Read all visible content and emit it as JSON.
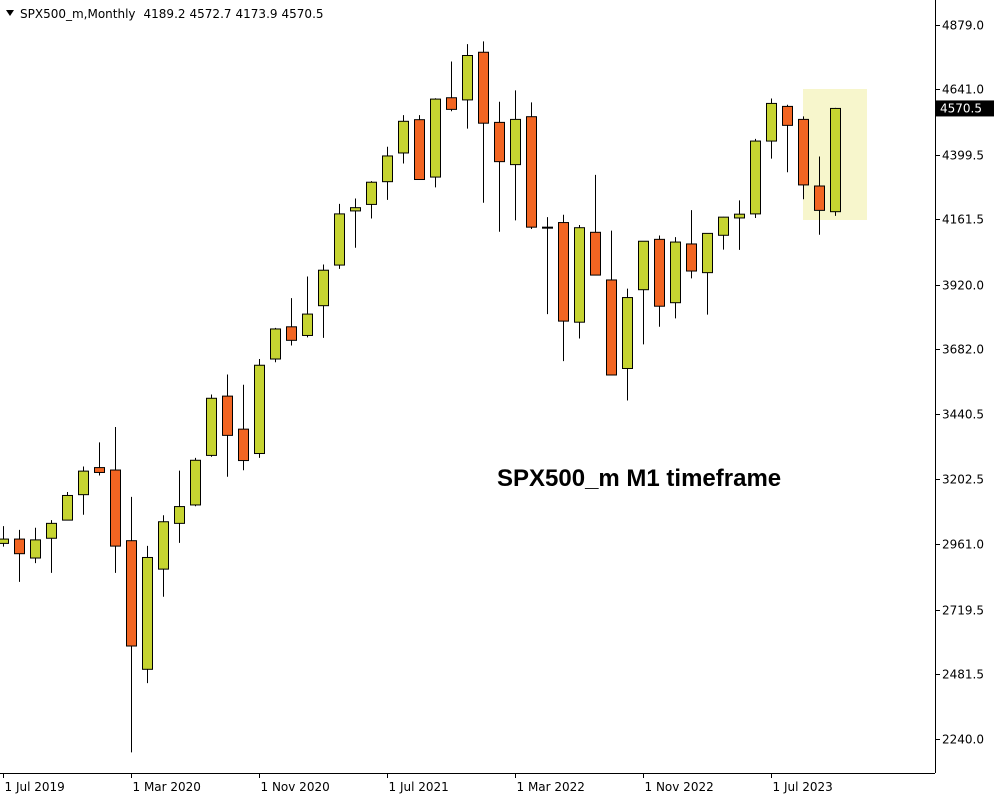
{
  "chart_data": {
    "type": "candlestick",
    "title": "SPX500_m,Monthly",
    "annotation": "SPX500_m M1 timeframe",
    "categories": [
      "1 Jul 2019",
      null,
      null,
      null,
      null,
      null,
      null,
      null,
      "1 Mar 2020",
      null,
      null,
      null,
      null,
      null,
      null,
      null,
      "1 Nov 2020",
      null,
      null,
      null,
      null,
      null,
      null,
      null,
      "1 Jul 2021",
      null,
      null,
      null,
      null,
      null,
      null,
      null,
      "1 Mar 2022",
      null,
      null,
      null,
      null,
      null,
      null,
      null,
      "1 Nov 2022",
      null,
      null,
      null,
      null,
      null,
      null,
      null,
      "1 Jul 2023",
      null,
      null,
      null,
      null
    ],
    "open": [
      2964,
      2980,
      2910,
      2983,
      3050,
      3144,
      3244,
      3235,
      2974,
      2499,
      2869,
      3038,
      3106,
      3289,
      3508,
      3386,
      3296,
      3645,
      3764,
      3732,
      3842,
      3992,
      4192,
      4216,
      4300,
      4406,
      4529,
      4317,
      4610,
      4602,
      4778,
      4519,
      4363,
      4540,
      4130,
      4149,
      3781,
      4113,
      3937,
      3610,
      3901,
      4087,
      3853,
      4070,
      3964,
      4102,
      4166,
      4181,
      4450,
      4578,
      4530,
      4284,
      4189.2
    ],
    "high": [
      3028,
      3014,
      3022,
      3050,
      3154,
      3248,
      3337,
      3394,
      3136,
      2955,
      3068,
      3233,
      3280,
      3514,
      3588,
      3550,
      3645,
      3760,
      3870,
      3950,
      3994,
      4218,
      4238,
      4302,
      4429,
      4546,
      4546,
      4608,
      4744,
      4808,
      4818,
      4595,
      4637,
      4593,
      4169,
      4178,
      4140,
      4325,
      4119,
      3905,
      4080,
      4101,
      4095,
      4195,
      4110,
      4170,
      4231,
      4458,
      4607,
      4584,
      4541,
      4393,
      4572.7
    ],
    "low": [
      2952,
      2822,
      2891,
      2855,
      3050,
      3070,
      3215,
      2855,
      2192,
      2448,
      2767,
      2966,
      3101,
      3284,
      3210,
      3234,
      3280,
      3633,
      3695,
      3725,
      3723,
      3978,
      4056,
      4164,
      4233,
      4367,
      4306,
      4279,
      4560,
      4496,
      4222,
      4115,
      4157,
      4125,
      3811,
      3637,
      3721,
      3955,
      3585,
      3492,
      3699,
      3764,
      3795,
      3943,
      3809,
      4049,
      4048,
      4166,
      4385,
      4335,
      4235,
      4104,
      4173.9
    ],
    "close": [
      2980,
      2926,
      2977,
      3038,
      3141,
      3231,
      3226,
      2954,
      2585,
      2912,
      3044,
      3100,
      3271,
      3500,
      3363,
      3270,
      3622,
      3756,
      3714,
      3811,
      3973,
      4181,
      4204,
      4298,
      4395,
      4523,
      4308,
      4605,
      4567,
      4766,
      4516,
      4374,
      4530,
      4132,
      4132,
      3785,
      4130,
      3955,
      3586,
      3872,
      4080,
      3840,
      4077,
      3970,
      4109,
      4169,
      4180,
      4450,
      4589,
      4508,
      4288,
      4194,
      4570.5
    ],
    "up_color": "#c6d431",
    "down_color": "#f26522",
    "ylim": [
      2116,
      4971
    ],
    "yticks": [
      {
        "value": 4879,
        "label": "4879.0"
      },
      {
        "value": 4641,
        "label": "4641.0"
      },
      {
        "value": 4399.5,
        "label": "4399.5"
      },
      {
        "value": 4161.5,
        "label": "4161.5"
      },
      {
        "value": 3920,
        "label": "3920.0"
      },
      {
        "value": 3682,
        "label": "3682.0"
      },
      {
        "value": 3440.5,
        "label": "3440.5"
      },
      {
        "value": 3202.5,
        "label": "3202.5"
      },
      {
        "value": 2961,
        "label": "2961.0"
      },
      {
        "value": 2719.5,
        "label": "2719.5"
      },
      {
        "value": 2481.5,
        "label": "2481.5"
      },
      {
        "value": 2240,
        "label": "2240.0"
      }
    ]
  }
}
